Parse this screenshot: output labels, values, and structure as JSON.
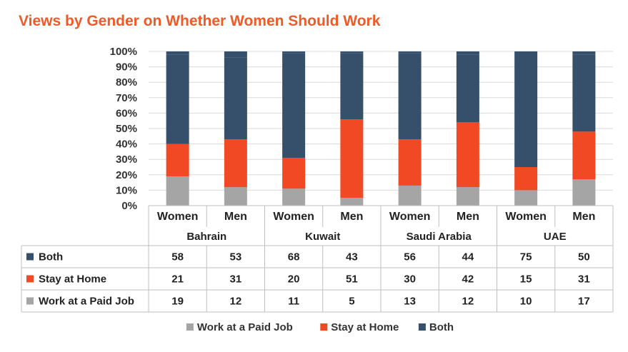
{
  "chart_data": {
    "type": "bar",
    "stacked": true,
    "percent_stacked": true,
    "title": "Views by Gender on Whether Women Should Work",
    "groups": [
      "Bahrain",
      "Kuwait",
      "Saudi Arabia",
      "UAE"
    ],
    "categories": [
      "Women",
      "Men",
      "Women",
      "Men",
      "Women",
      "Men",
      "Women",
      "Men"
    ],
    "yticks": [
      "0%",
      "10%",
      "20%",
      "30%",
      "40%",
      "50%",
      "60%",
      "70%",
      "80%",
      "90%",
      "100%"
    ],
    "ylim": [
      0,
      100
    ],
    "series": [
      {
        "name": "Work at a Paid Job",
        "color": "#a5a5a5",
        "values": [
          19,
          12,
          11,
          5,
          13,
          12,
          10,
          17
        ]
      },
      {
        "name": "Stay at Home",
        "color": "#f04923",
        "values": [
          21,
          31,
          20,
          51,
          30,
          42,
          15,
          31
        ]
      },
      {
        "name": "Both",
        "color": "#364f6b",
        "values": [
          58,
          53,
          68,
          43,
          56,
          44,
          75,
          50
        ]
      }
    ],
    "table_rows": [
      "Both",
      "Stay at Home",
      "Work at a Paid Job"
    ],
    "legend": [
      "Work at a Paid Job",
      "Stay at Home",
      "Both"
    ],
    "legend_position": "bottom",
    "grid": true
  }
}
